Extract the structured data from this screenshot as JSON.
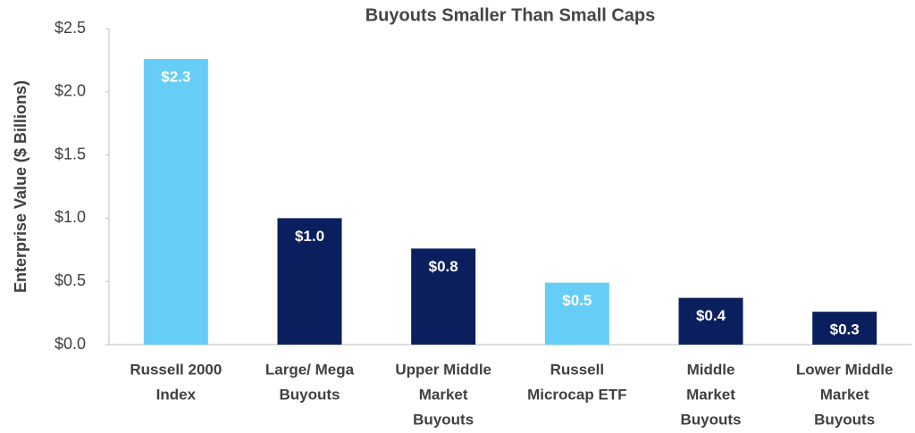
{
  "chart_data": {
    "type": "bar",
    "title": "Buyouts Smaller Than Small Caps",
    "y_label": "Enterprise Value ($ Billions)",
    "categories": [
      [
        "Russell 2000",
        "Index"
      ],
      [
        "Large/ Mega",
        "Buyouts"
      ],
      [
        "Upper Middle",
        "Market",
        "Buyouts"
      ],
      [
        "Russell",
        "Microcap ETF"
      ],
      [
        "Middle",
        "Market",
        "Buyouts"
      ],
      [
        "Lower Middle",
        "Market",
        "Buyouts"
      ]
    ],
    "values": [
      2.26,
      1.0,
      0.76,
      0.49,
      0.37,
      0.26
    ],
    "value_labels": [
      "$2.3",
      "$1.0",
      "$0.8",
      "$0.5",
      "$0.4",
      "$0.3"
    ],
    "colors": [
      "#66cdf6",
      "#0b1f5e",
      "#0b1f5e",
      "#66cdf6",
      "#0b1f5e",
      "#0b1f5e"
    ],
    "ylim": [
      0,
      2.5
    ],
    "yticks": [
      {
        "value": 0,
        "label": "$0.0"
      },
      {
        "value": 0.5,
        "label": "$0.5"
      },
      {
        "value": 1.0,
        "label": "$1.0"
      },
      {
        "value": 1.5,
        "label": "$1.5"
      },
      {
        "value": 2.0,
        "label": "$2.0"
      },
      {
        "value": 2.5,
        "label": "$2.5"
      }
    ],
    "grid": false
  }
}
